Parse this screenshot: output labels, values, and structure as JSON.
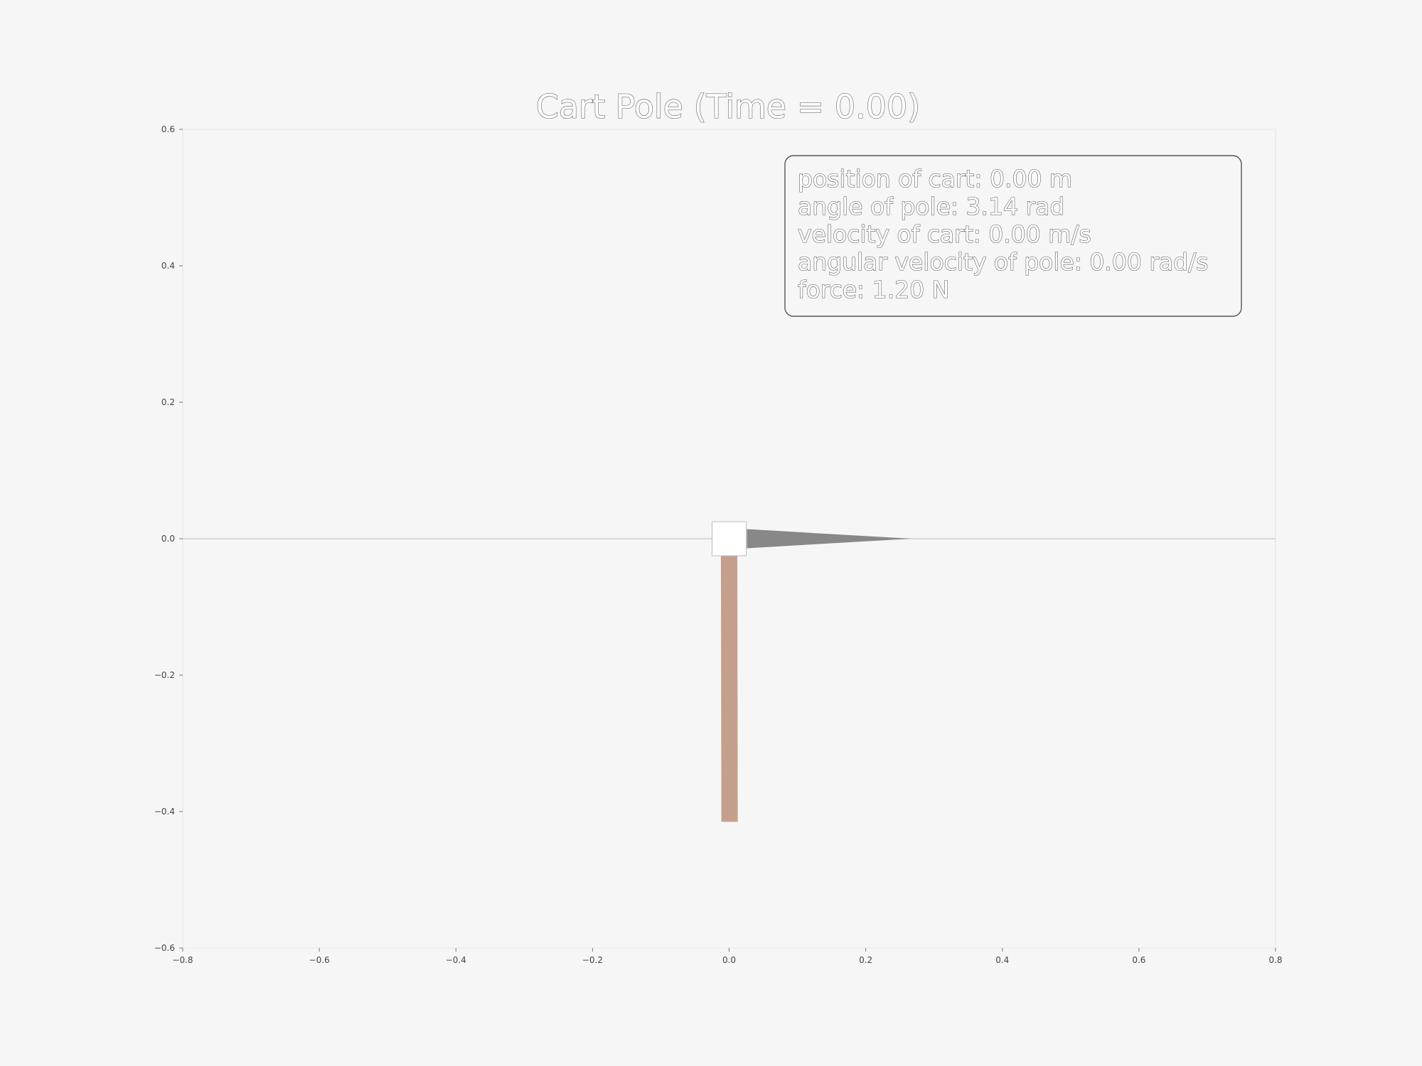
{
  "chart_data": {
    "type": "scatter",
    "title": "Cart Pole (Time =  0.00)",
    "xlabel": "",
    "ylabel": "",
    "xlim": [
      -0.8,
      0.8
    ],
    "ylim": [
      -0.6,
      0.6
    ],
    "x_ticks": [
      -0.8,
      -0.6,
      -0.4,
      -0.2,
      0.0,
      0.2,
      0.4,
      0.6,
      0.8
    ],
    "x_tick_labels": [
      "−0.8",
      "−0.6",
      "−0.4",
      "−0.2",
      "0.0",
      "0.2",
      "0.4",
      "0.6",
      "0.8"
    ],
    "y_ticks": [
      0.6,
      0.4,
      0.2,
      0.0,
      -0.2,
      -0.4,
      -0.6
    ],
    "y_tick_labels": [
      "0.6",
      "0.4",
      "0.2",
      "0.0",
      "−0.2",
      "−0.4",
      "−0.6"
    ],
    "grid": false,
    "track": {
      "y": 0.0
    },
    "cart": {
      "x": 0.0,
      "y": 0.0,
      "width": 0.05,
      "height": 0.05,
      "color": "#ffffff"
    },
    "pole": {
      "pivot_x": 0.0,
      "pivot_y": -0.025,
      "length": 0.39,
      "angle_rad": 3.14,
      "width": 0.024,
      "color": "#c4a08c"
    },
    "force_arrow": {
      "origin_x": 0.026,
      "y": 0.0,
      "length": 0.24,
      "half_width": 0.014,
      "color": "#888888"
    },
    "info_box": {
      "lines": [
        "position of cart: 0.00 m",
        "angle of pole: 3.14 rad",
        "velocity of cart: 0.00 m/s",
        "angular velocity of pole: 0.00 rad/s",
        "force: 1.20 N"
      ]
    }
  },
  "colors": {
    "background": "#f6f6f6",
    "axes_face": "#f6f6f6",
    "cart": "#ffffff",
    "pole": "#c4a08c",
    "arrow": "#888888",
    "text_outline": "#555555"
  }
}
